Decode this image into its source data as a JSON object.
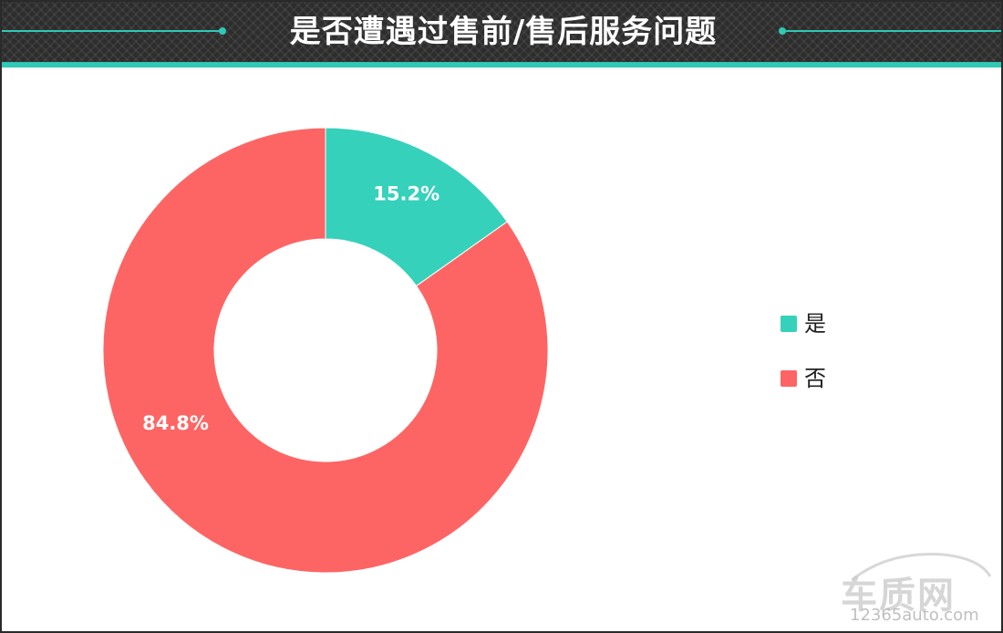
{
  "header": {
    "title": "是否遭遇过售前/售后服务问题"
  },
  "colors": {
    "header_bg": "#2d2d2d",
    "accent": "#2fc9b5"
  },
  "chart_data": {
    "type": "pie",
    "title": "是否遭遇过售前/售后服务问题",
    "donut": true,
    "start_angle_deg": 0,
    "direction": "clockwise",
    "legend_position": "right",
    "slices": [
      {
        "name": "是",
        "value": 15.2,
        "label": "15.2%",
        "color": "#36d1bb"
      },
      {
        "name": "否",
        "value": 84.8,
        "label": "84.8%",
        "color": "#fd6564"
      }
    ]
  },
  "watermark": {
    "logo_text": "车质网",
    "site": "12365auto.com"
  }
}
